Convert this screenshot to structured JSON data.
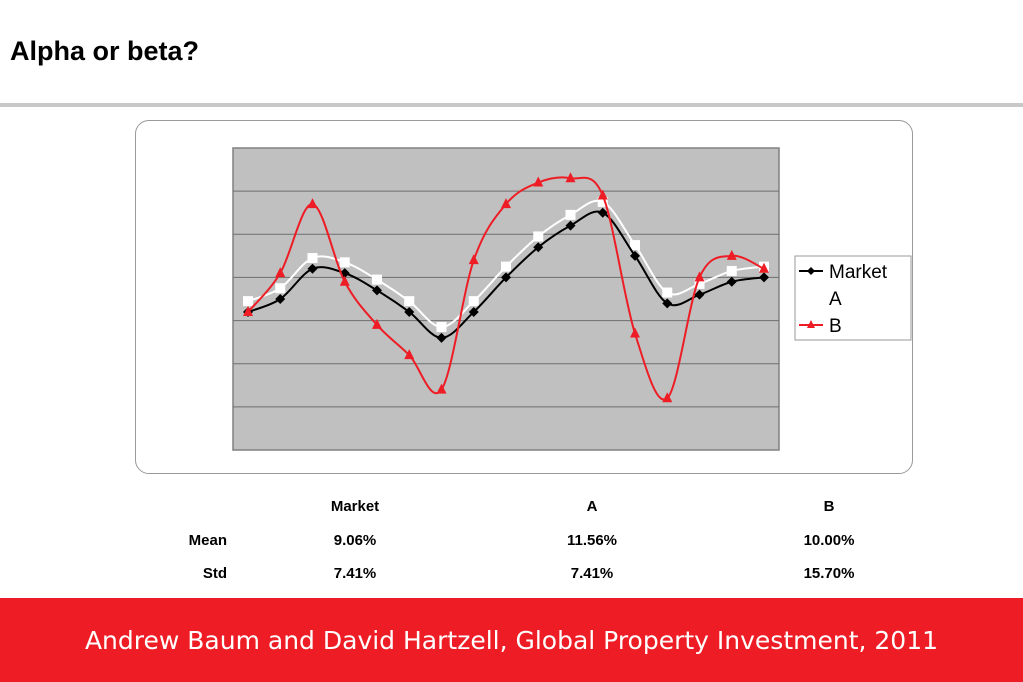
{
  "slide": {
    "title": "Alpha or beta?",
    "footer": "Andrew Baum and David Hartzell, Global Property Investment, 2011"
  },
  "chart_data": {
    "type": "line",
    "title": "",
    "xlabel": "",
    "ylabel": "",
    "ylim": [
      0,
      7
    ],
    "grid": true,
    "legend": "right",
    "plot_background": "#c0c0c0",
    "x": [
      1,
      2,
      3,
      4,
      5,
      6,
      7,
      8,
      9,
      10,
      11,
      12,
      13,
      14,
      15,
      16,
      17
    ],
    "series": [
      {
        "name": "Market",
        "color": "#000000",
        "marker": "diamond",
        "values": [
          3.2,
          3.5,
          4.2,
          4.1,
          3.7,
          3.2,
          2.6,
          3.2,
          4.0,
          4.7,
          5.2,
          5.5,
          4.5,
          3.4,
          3.6,
          3.9,
          4.0
        ]
      },
      {
        "name": "A",
        "color": "#ffffff",
        "marker": "square",
        "values": [
          3.45,
          3.75,
          4.45,
          4.35,
          3.95,
          3.45,
          2.85,
          3.45,
          4.25,
          4.95,
          5.45,
          5.75,
          4.75,
          3.65,
          3.85,
          4.15,
          4.25
        ]
      },
      {
        "name": "B",
        "color": "#ee1c24",
        "marker": "triangle",
        "values": [
          3.2,
          4.1,
          5.7,
          3.9,
          2.9,
          2.2,
          1.4,
          4.4,
          5.7,
          6.2,
          6.3,
          5.9,
          2.7,
          1.2,
          4.0,
          4.5,
          4.2
        ]
      }
    ]
  },
  "stats_table": {
    "columns": [
      "Market",
      "A",
      "B"
    ],
    "rows": [
      {
        "label": "Mean",
        "values": [
          "9.06%",
          "11.56%",
          "10.00%"
        ]
      },
      {
        "label": "Std",
        "values": [
          "7.41%",
          "7.41%",
          "15.70%"
        ]
      }
    ]
  }
}
